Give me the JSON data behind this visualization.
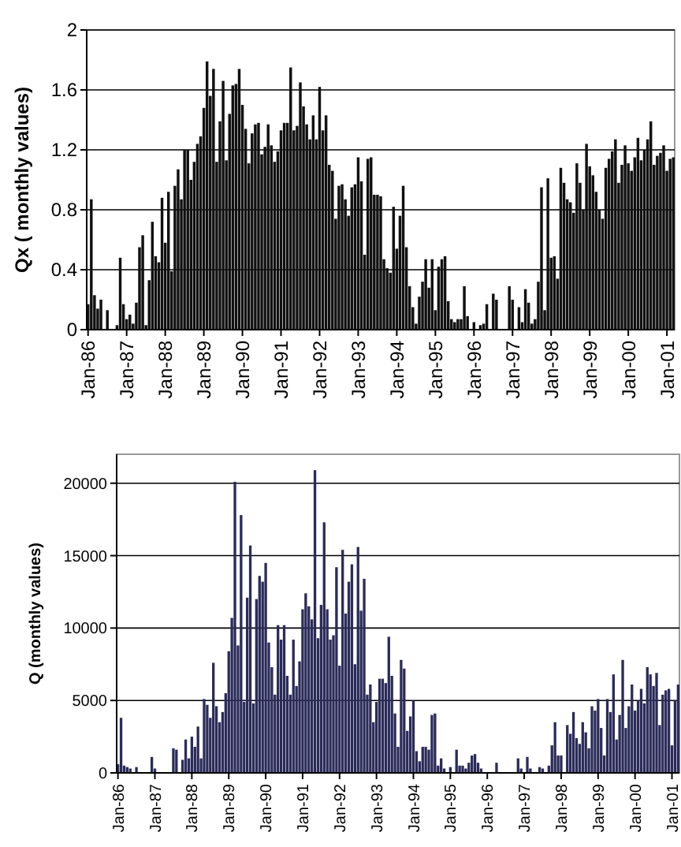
{
  "chart_data": [
    {
      "type": "bar",
      "ylabel": "Qx ( monthly values)",
      "color": "#111111",
      "categories": [
        "Jan-86",
        null,
        null,
        null,
        null,
        null,
        null,
        null,
        null,
        null,
        null,
        null,
        "Jan-87",
        null,
        null,
        null,
        null,
        null,
        null,
        null,
        null,
        null,
        null,
        null,
        "Jan-88",
        null,
        null,
        null,
        null,
        null,
        null,
        null,
        null,
        null,
        null,
        null,
        "Jan-89",
        null,
        null,
        null,
        null,
        null,
        null,
        null,
        null,
        null,
        null,
        null,
        "Jan-90",
        null,
        null,
        null,
        null,
        null,
        null,
        null,
        null,
        null,
        null,
        null,
        "Jan-91",
        null,
        null,
        null,
        null,
        null,
        null,
        null,
        null,
        null,
        null,
        null,
        "Jan-92",
        null,
        null,
        null,
        null,
        null,
        null,
        null,
        null,
        null,
        null,
        null,
        "Jan-93",
        null,
        null,
        null,
        null,
        null,
        null,
        null,
        null,
        null,
        null,
        null,
        "Jan-94",
        null,
        null,
        null,
        null,
        null,
        null,
        null,
        null,
        null,
        null,
        null,
        "Jan-95",
        null,
        null,
        null,
        null,
        null,
        null,
        null,
        null,
        null,
        null,
        null,
        "Jan-96",
        null,
        null,
        null,
        null,
        null,
        null,
        null,
        null,
        null,
        null,
        null,
        "Jan-97",
        null,
        null,
        null,
        null,
        null,
        null,
        null,
        null,
        null,
        null,
        null,
        "Jan-98",
        null,
        null,
        null,
        null,
        null,
        null,
        null,
        null,
        null,
        null,
        null,
        "Jan-99",
        null,
        null,
        null,
        null,
        null,
        null,
        null,
        null,
        null,
        null,
        null,
        "Jan-00",
        null,
        null,
        null,
        null,
        null,
        null,
        null,
        null,
        null,
        null,
        null,
        "Jan-01",
        null,
        null
      ],
      "values": [
        0.17,
        0.87,
        0.23,
        0.14,
        0.2,
        0,
        0.13,
        0,
        0,
        0.03,
        0.48,
        0.17,
        0.07,
        0.1,
        0.04,
        0.18,
        0.55,
        0.63,
        0.03,
        0.33,
        0.72,
        0.49,
        0.45,
        0.88,
        0.58,
        0.92,
        0.39,
        0.96,
        1.07,
        0.87,
        1.2,
        1.2,
        1.0,
        1.12,
        1.24,
        1.29,
        1.48,
        1.79,
        1.56,
        1.74,
        1.12,
        1.39,
        1.66,
        1.13,
        1.44,
        1.63,
        1.64,
        1.74,
        1.5,
        1.34,
        1.11,
        1.31,
        1.37,
        1.38,
        1.17,
        1.22,
        1.37,
        1.23,
        1.12,
        1.19,
        1.33,
        1.38,
        1.38,
        1.75,
        1.33,
        1.36,
        1.65,
        1.49,
        1.37,
        1.27,
        1.43,
        1.27,
        1.62,
        1.33,
        1.43,
        1.1,
        1.06,
        0.74,
        0.96,
        0.97,
        0.87,
        0.76,
        0.95,
        0.97,
        1.15,
        0.99,
        0.5,
        1.14,
        1.15,
        0.9,
        0.9,
        0.89,
        0.47,
        0.41,
        0.38,
        0.82,
        0.54,
        0.76,
        0.96,
        0.55,
        0.29,
        0.15,
        0.04,
        0.22,
        0.32,
        0.47,
        0.28,
        0.47,
        0.13,
        0.42,
        0.47,
        0.49,
        0.19,
        0.07,
        0.05,
        0.07,
        0.07,
        0.29,
        0.09,
        0,
        0.05,
        0,
        0.03,
        0.04,
        0.17,
        0,
        0.24,
        0.2,
        0,
        0,
        0,
        0.29,
        0.2,
        0,
        0.15,
        0.05,
        0.27,
        0.18,
        0.04,
        0.07,
        0.32,
        0.95,
        0.13,
        1.01,
        0.48,
        0.49,
        0.34,
        1.08,
        0.98,
        0.87,
        0.85,
        0.78,
        1.11,
        0.98,
        0.8,
        1.24,
        1.09,
        1.03,
        0.92,
        0.8,
        0.74,
        1.08,
        1.14,
        1.19,
        1.27,
        0.98,
        1.1,
        1.23,
        1.11,
        1.06,
        1.15,
        1.28,
        1.13,
        1.2,
        1.27,
        1.39,
        1.1,
        1.16,
        1.18,
        1.23,
        1.06,
        1.14,
        1.15
      ],
      "ylim": [
        0,
        2
      ],
      "yticks": [
        0,
        0.4,
        0.8,
        1.2,
        1.6,
        2
      ],
      "grid": "y"
    },
    {
      "type": "bar",
      "ylabel": "Q (monthly values)",
      "color": "#2b2b5a",
      "categories": [
        "Jan-86",
        null,
        null,
        null,
        null,
        null,
        null,
        null,
        null,
        null,
        null,
        null,
        "Jan-87",
        null,
        null,
        null,
        null,
        null,
        null,
        null,
        null,
        null,
        null,
        null,
        "Jan-88",
        null,
        null,
        null,
        null,
        null,
        null,
        null,
        null,
        null,
        null,
        null,
        "Jan-89",
        null,
        null,
        null,
        null,
        null,
        null,
        null,
        null,
        null,
        null,
        null,
        "Jan-90",
        null,
        null,
        null,
        null,
        null,
        null,
        null,
        null,
        null,
        null,
        null,
        "Jan-91",
        null,
        null,
        null,
        null,
        null,
        null,
        null,
        null,
        null,
        null,
        null,
        "Jan-92",
        null,
        null,
        null,
        null,
        null,
        null,
        null,
        null,
        null,
        null,
        null,
        "Jan-93",
        null,
        null,
        null,
        null,
        null,
        null,
        null,
        null,
        null,
        null,
        null,
        "Jan-94",
        null,
        null,
        null,
        null,
        null,
        null,
        null,
        null,
        null,
        null,
        null,
        "Jan-95",
        null,
        null,
        null,
        null,
        null,
        null,
        null,
        null,
        null,
        null,
        null,
        "Jan-96",
        null,
        null,
        null,
        null,
        null,
        null,
        null,
        null,
        null,
        null,
        null,
        "Jan-97",
        null,
        null,
        null,
        null,
        null,
        null,
        null,
        null,
        null,
        null,
        null,
        "Jan-98",
        null,
        null,
        null,
        null,
        null,
        null,
        null,
        null,
        null,
        null,
        null,
        "Jan-99",
        null,
        null,
        null,
        null,
        null,
        null,
        null,
        null,
        null,
        null,
        null,
        "Jan-00",
        null,
        null,
        null,
        null,
        null,
        null,
        null,
        null,
        null,
        null,
        null,
        "Jan-01",
        null,
        null
      ],
      "values": [
        600,
        3800,
        500,
        400,
        300,
        0,
        400,
        0,
        0,
        0,
        0,
        1100,
        300,
        0,
        0,
        0,
        0,
        0,
        1700,
        1600,
        0,
        900,
        2300,
        1000,
        2500,
        1800,
        3200,
        1000,
        5100,
        4700,
        3800,
        7600,
        4600,
        3500,
        4200,
        5500,
        8400,
        10700,
        20100,
        8800,
        17800,
        4900,
        12100,
        15700,
        4800,
        12000,
        13600,
        13200,
        14500,
        9000,
        7300,
        5400,
        10200,
        9200,
        10200,
        6700,
        5400,
        9200,
        6000,
        7700,
        11300,
        12400,
        11500,
        10600,
        20900,
        9300,
        11600,
        17300,
        11300,
        9200,
        9500,
        14200,
        7400,
        15400,
        11000,
        13200,
        14400,
        7500,
        15600,
        11200,
        13400,
        5400,
        6100,
        3500,
        4900,
        6500,
        6500,
        6200,
        9400,
        6700,
        4100,
        1800,
        7800,
        7200,
        2900,
        3900,
        5000,
        1500,
        800,
        1800,
        1800,
        1600,
        4000,
        4100,
        500,
        1000,
        300,
        0,
        400,
        0,
        1600,
        500,
        500,
        300,
        700,
        1200,
        1300,
        700,
        300,
        0,
        0,
        0,
        0,
        700,
        0,
        0,
        0,
        0,
        0,
        0,
        1000,
        300,
        0,
        1100,
        300,
        0,
        0,
        400,
        300,
        0,
        500,
        1900,
        3500,
        1200,
        1200,
        0,
        3300,
        2700,
        4200,
        2400,
        2000,
        3500,
        2800,
        1700,
        4600,
        4300,
        5100,
        3100,
        1200,
        5100,
        4200,
        6800,
        2300,
        4000,
        7800,
        3100,
        4600,
        6100,
        4300,
        5000,
        5800,
        4800,
        7300,
        6800,
        6000,
        6900,
        3300,
        5400,
        5700,
        5800,
        1900,
        5000,
        6100
      ],
      "ylim": [
        0,
        22000
      ],
      "yticks": [
        0,
        5000,
        10000,
        15000,
        20000
      ],
      "grid": "y"
    }
  ]
}
